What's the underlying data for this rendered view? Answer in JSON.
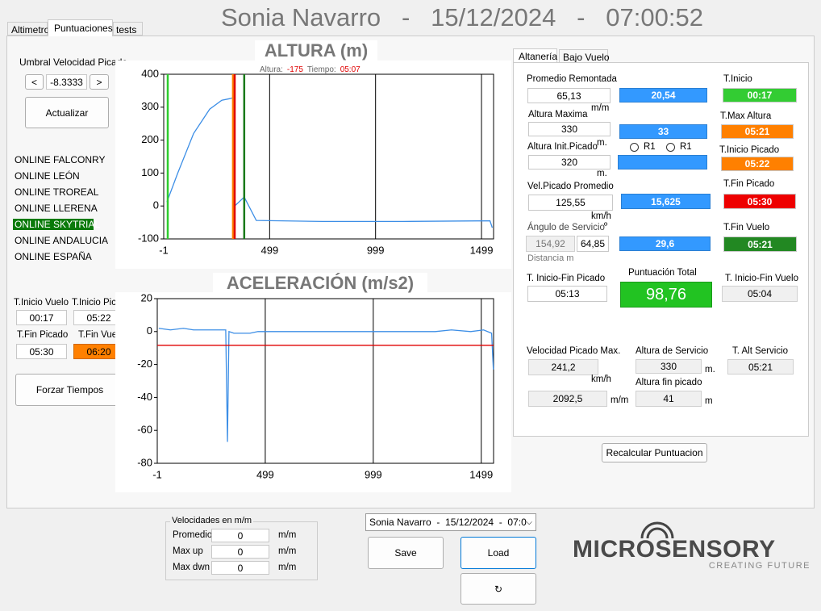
{
  "tabs": [
    "Altimetro",
    "Puntuaciones",
    "tests"
  ],
  "header": {
    "title": "Sonia Navarro   -   15/12/2024   -   07:00:52"
  },
  "umbral": {
    "label": "Umbral Velocidad Picado",
    "value": -8.3333,
    "dec": "<",
    "inc": ">",
    "button": "Actualizar"
  },
  "online": {
    "items": [
      "ONLINE FALCONRY",
      "ONLINE LEÓN",
      "ONLINE TROREAL",
      "ONLINE LLERENA",
      "ONLINE SKYTRIAL",
      "ONLINE ANDALUCIA",
      "ONLINE ESPAÑA"
    ],
    "selected": 4
  },
  "times": {
    "t_inicio_vuelo": {
      "label": "T.Inicio Vuelo",
      "value": "00:17"
    },
    "t_inicio_picado": {
      "label": "T.Inicio Picado",
      "value": "05:22"
    },
    "t_fin_picado": {
      "label": "T.Fin Picado",
      "value": "05:30"
    },
    "t_fin_vuelo": {
      "label": "T.Fin Vuelo",
      "value": "06:20"
    },
    "button": "Forzar Tiempos"
  },
  "charts": [
    {
      "type": "line",
      "title": "ALTURA (m)",
      "subtitle": {
        "altura_label": "Altura:",
        "altura": -175,
        "tiempo_label": "Tiempo:",
        "tiempo": "05:07"
      },
      "xlim": [
        -1,
        1556
      ],
      "ylim": [
        -100,
        400
      ],
      "xticks": [
        -1,
        499,
        999,
        1499
      ],
      "yticks": [
        -100,
        0,
        100,
        200,
        300,
        400
      ],
      "x": [
        14,
        64,
        140,
        216,
        273,
        311,
        322,
        328,
        334,
        379,
        436,
        748,
        1128,
        1539,
        1550
      ],
      "series": [
        {
          "color": "#3c8ee6",
          "values": [
            12,
            98,
            220,
            294,
            321,
            326,
            328,
            null,
            0,
            27,
            -44,
            -47,
            -47,
            -45,
            -66
          ]
        }
      ],
      "vlines": [
        {
          "x": 18,
          "color": "#2ecc2e"
        },
        {
          "x": 326,
          "color": "#ff8000"
        },
        {
          "x": 334,
          "color": "#e00000"
        },
        {
          "x": 379,
          "color": "#1a7a1a"
        }
      ]
    },
    {
      "type": "line",
      "title": "ACELERACIÓN (m/s2)",
      "xlim": [
        -1,
        1556
      ],
      "ylim": [
        -80,
        20
      ],
      "xticks": [
        -1,
        499,
        999,
        1499
      ],
      "yticks": [
        -80,
        -60,
        -40,
        -20,
        0,
        20
      ],
      "x": [
        6,
        60,
        120,
        167,
        240,
        316,
        324,
        331,
        354,
        428,
        465,
        900,
        1286,
        1361,
        1450,
        1510,
        1547,
        1555
      ],
      "series": [
        {
          "color": "#3c8ee6",
          "values": [
            2,
            1,
            2,
            1,
            1,
            1,
            -67,
            0,
            -1,
            -1,
            0,
            0,
            0,
            1,
            0,
            1,
            -1,
            -23
          ]
        }
      ],
      "hline_color": "#e00000"
    }
  ],
  "altaneria": {
    "tabs": [
      "Altanería",
      "Bajo Vuelo"
    ],
    "promedio_remontada": {
      "label": "Promedio Remontada",
      "value": "65,13",
      "unit": "m/m",
      "calc": "20,54"
    },
    "t_inicio": {
      "label": "T.Inicio",
      "value": "00:17"
    },
    "altura_maxima": {
      "label": "Altura Maxima",
      "value": "330",
      "unit": "m.",
      "calc": "33"
    },
    "t_max_altura": {
      "label": "T.Max Altura",
      "value": "05:21"
    },
    "altura_init_picado": {
      "label": "Altura Init.Picado",
      "value": "320",
      "unit": "m.",
      "radios": [
        "R1",
        "R1"
      ]
    },
    "t_inicio_picado": {
      "label": "T.Inicio Picado",
      "value": "05:22"
    },
    "vel_picado_promedio": {
      "label": "Vel.Picado Promedio",
      "value": "125,55",
      "unit": "km/h",
      "calc": "15,625"
    },
    "t_fin_picado": {
      "label": "T.Fin Picado",
      "value": "05:30"
    },
    "angulo_servicio": {
      "label": "Ángulo de Servicio",
      "unit": "º",
      "value": "154,92",
      "value2": "64,85",
      "note": "Distancia m",
      "calc": "29,6"
    },
    "t_fin_vuelo": {
      "label": "T.Fin Vuelo",
      "value": "05:21"
    },
    "t_inicio_fin_picado": {
      "label": "T. Inicio-Fin Picado",
      "value": "05:13"
    },
    "puntuacion_total": {
      "label": "Puntuación Total",
      "value": "98,76"
    },
    "t_inicio_fin_vuelo": {
      "label": "T. Inicio-Fin Vuelo",
      "value": "05:04"
    },
    "velocidad_picado_max": {
      "label": "Velocidad Picado Max.",
      "value": "241,2",
      "unit": "km/h",
      "value2": "2092,5",
      "unit2": "m/m"
    },
    "altura_servicio": {
      "label": "Altura de Servicio",
      "value": "330",
      "unit": "m."
    },
    "altura_fin_picado": {
      "label": "Altura fin picado",
      "value": "41",
      "unit": "m"
    },
    "t_alt_servicio": {
      "label": "T. Alt Servicio",
      "value": "05:21"
    }
  },
  "recalcular": "Recalcular Puntuacion",
  "velocidades": {
    "title": "Velocidades en m/m",
    "rows": [
      {
        "label": "Promedio",
        "value": 0,
        "unit": "m/m"
      },
      {
        "label": "Max up",
        "value": 0,
        "unit": "m/m"
      },
      {
        "label": "Max dwn",
        "value": 0,
        "unit": "m/m"
      }
    ]
  },
  "combo": "Sonia Navarro  -  15/12/2024  -  07:0",
  "buttons": {
    "save": "Save",
    "load": "Load",
    "refresh": "↻"
  },
  "logo": {
    "name": "MICROSENSORY",
    "tagline": "CREATING FUTURE"
  }
}
